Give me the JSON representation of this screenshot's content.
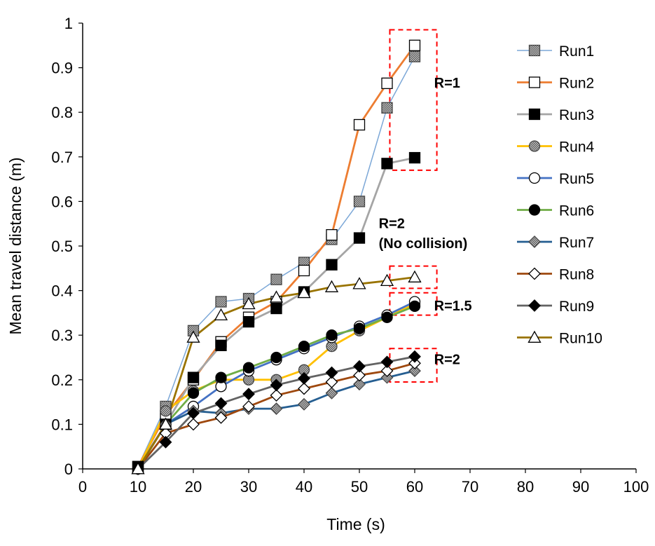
{
  "chart_data": {
    "type": "line",
    "title": "",
    "xlabel": "Time (s)",
    "ylabel": "Mean travel distance (m)",
    "xlim": [
      0,
      100
    ],
    "ylim": [
      0,
      1
    ],
    "xticks": [
      "0",
      "10",
      "20",
      "30",
      "40",
      "50",
      "60",
      "70",
      "80",
      "90",
      "100"
    ],
    "yticks": [
      "0",
      "0.1",
      "0.2",
      "0.3",
      "0.4",
      "0.5",
      "0.6",
      "0.7",
      "0.8",
      "0.9",
      "1"
    ],
    "grid": false,
    "legend_position": "right",
    "x": [
      10,
      15,
      20,
      25,
      30,
      35,
      40,
      45,
      50,
      55,
      60
    ],
    "series": [
      {
        "name": "Run1",
        "color": "#7ba7d7",
        "marker": "square-hatched",
        "values": [
          0.005,
          0.14,
          0.31,
          0.375,
          0.382,
          0.425,
          0.463,
          0.515,
          0.6,
          0.81,
          0.925
        ]
      },
      {
        "name": "Run2",
        "color": "#ed7d31",
        "marker": "square-open",
        "values": [
          0.005,
          0.12,
          0.2,
          0.285,
          0.34,
          0.375,
          0.445,
          0.525,
          0.772,
          0.865,
          0.95
        ]
      },
      {
        "name": "Run3",
        "color": "#a5a5a5",
        "marker": "square-filled",
        "values": [
          0.005,
          0.1,
          0.205,
          0.277,
          0.33,
          0.36,
          0.397,
          0.458,
          0.518,
          0.685,
          0.698
        ]
      },
      {
        "name": "Run4",
        "color": "#ffc000",
        "marker": "circle-hatched",
        "values": [
          0.0,
          0.13,
          0.175,
          0.2,
          0.2,
          0.2,
          0.222,
          0.275,
          0.31,
          0.34,
          0.37
        ]
      },
      {
        "name": "Run5",
        "color": "#4472c4",
        "marker": "circle-open",
        "values": [
          0.0,
          0.1,
          0.14,
          0.185,
          0.22,
          0.245,
          0.27,
          0.295,
          0.32,
          0.345,
          0.375
        ]
      },
      {
        "name": "Run6",
        "color": "#70ad47",
        "marker": "circle-filled",
        "values": [
          0.0,
          0.1,
          0.17,
          0.205,
          0.227,
          0.25,
          0.275,
          0.3,
          0.315,
          0.34,
          0.365
        ]
      },
      {
        "name": "Run7",
        "color": "#255e91",
        "marker": "diamond-hatched",
        "values": [
          0.0,
          0.1,
          0.13,
          0.125,
          0.135,
          0.135,
          0.145,
          0.17,
          0.19,
          0.205,
          0.22
        ]
      },
      {
        "name": "Run8",
        "color": "#9e480e",
        "marker": "diamond-open",
        "values": [
          0.0,
          0.08,
          0.1,
          0.115,
          0.14,
          0.165,
          0.18,
          0.195,
          0.21,
          0.22,
          0.237
        ]
      },
      {
        "name": "Run9",
        "color": "#636363",
        "marker": "diamond-filled",
        "values": [
          0.0,
          0.06,
          0.125,
          0.147,
          0.168,
          0.188,
          0.203,
          0.216,
          0.23,
          0.24,
          0.252
        ]
      },
      {
        "name": "Run10",
        "color": "#997300",
        "marker": "triangle-open",
        "values": [
          0.0,
          0.1,
          0.295,
          0.345,
          0.37,
          0.385,
          0.395,
          0.408,
          0.415,
          0.422,
          0.43
        ]
      }
    ],
    "annotations": [
      {
        "text": "R=1",
        "x": 63.5,
        "y": 0.855
      },
      {
        "text": "R=2",
        "x": 53.5,
        "y": 0.54
      },
      {
        "text": "(No collision)",
        "x": 53.5,
        "y": 0.495
      },
      {
        "text": "R=1.5",
        "x": 63.5,
        "y": 0.355
      },
      {
        "text": "R=2",
        "x": 63.5,
        "y": 0.235
      }
    ],
    "dashed_boxes": [
      {
        "x": [
          55.5,
          64
        ],
        "y": [
          0.67,
          0.985
        ]
      },
      {
        "x": [
          55.5,
          64
        ],
        "y": [
          0.405,
          0.455
        ]
      },
      {
        "x": [
          55.5,
          64
        ],
        "y": [
          0.345,
          0.395
        ]
      },
      {
        "x": [
          55.5,
          64
        ],
        "y": [
          0.195,
          0.27
        ]
      }
    ],
    "box_color": "#ff0000"
  }
}
